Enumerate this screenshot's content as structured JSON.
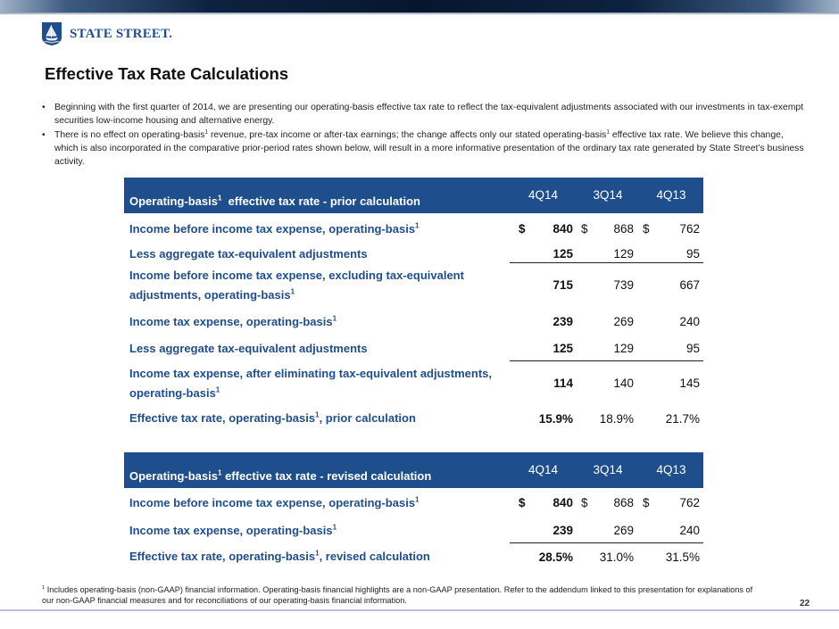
{
  "brand": {
    "name": "STATE STREET.",
    "icon": "ship-logo-icon",
    "color": "#1f4e8c"
  },
  "page": {
    "title": "Effective Tax Rate Calculations",
    "number": "22"
  },
  "bullets": [
    {
      "text": "Beginning with the first quarter of 2014, we are presenting our operating-basis effective tax rate to reflect the tax-equivalent adjustments associated with our investments in tax-exempt securities low-income housing and alternative energy."
    },
    {
      "pre1": "There is no effect on operating-basis",
      "sup1": "1",
      "mid": " revenue, pre-tax income or after-tax earnings; the change affects only our stated operating-basis",
      "sup2": "1",
      "post": " effective tax rate. We believe this change, which is also incorporated in the comparative prior-period rates shown below, will result in a more informative presentation of the ordinary tax rate generated by State Street’s business activity."
    }
  ],
  "table_prior": {
    "header": {
      "label_pre": "Operating-basis",
      "sup": "1",
      "label_post": "  effective tax rate - prior calculation",
      "q1": "4Q14",
      "q2": "3Q14",
      "q3": "4Q13"
    },
    "rows": [
      {
        "label": "Income before income tax expense, operating-basis",
        "sup": "1",
        "post": "",
        "cur1": "$",
        "v1": "840",
        "cur2": "$",
        "v2": "868",
        "cur3": "$",
        "v3": "762"
      },
      {
        "label": "Less aggregate tax-equivalent adjustments",
        "sup": "",
        "post": "",
        "v1": "125",
        "v2": "129",
        "v3": "95"
      },
      {
        "label": "Income before income tax expense, excluding tax-equivalent adjustments, operating-basis",
        "sup": "1",
        "post": "",
        "v1": "715",
        "v2": "739",
        "v3": "667"
      },
      {
        "label": "Income tax expense, operating-basis",
        "sup": "1",
        "post": "",
        "v1": "239",
        "v2": "269",
        "v3": "240"
      },
      {
        "label": "Less aggregate tax-equivalent adjustments",
        "sup": "",
        "post": "",
        "v1": "125",
        "v2": "129",
        "v3": "95"
      },
      {
        "label": "Income tax expense, after eliminating tax-equivalent adjustments, operating-basis",
        "sup": "1",
        "post": "",
        "v1": "114",
        "v2": "140",
        "v3": "145"
      },
      {
        "label": "Effective tax rate, operating-basis",
        "sup": "1",
        "post": ", prior calculation",
        "v1": "15.9%",
        "v2": "18.9%",
        "v3": "21.7%"
      }
    ]
  },
  "table_revised": {
    "header": {
      "label_pre": "Operating-basis",
      "sup": "1",
      "label_post": " effective tax rate - revised calculation",
      "q1": "4Q14",
      "q2": "3Q14",
      "q3": "4Q13"
    },
    "rows": [
      {
        "label": "Income before income tax expense, operating-basis",
        "sup": "1",
        "post": "",
        "cur1": "$",
        "v1": "840",
        "cur2": "$",
        "v2": "868",
        "cur3": "$",
        "v3": "762"
      },
      {
        "label": "Income tax expense, operating-basis",
        "sup": "1",
        "post": "",
        "v1": "239",
        "v2": "269",
        "v3": "240"
      },
      {
        "label": "Effective tax rate, operating-basis",
        "sup": "1",
        "post": ", revised calculation",
        "v1": "28.5%",
        "v2": "31.0%",
        "v3": "31.5%"
      }
    ]
  },
  "footnote": {
    "sup": "1",
    "text": " Includes operating-basis (non-GAAP) financial information.  Operating-basis financial highlights are a non-GAAP presentation.  Refer to the addendum linked to this presentation for explanations of our non-GAAP financial measures and for reconciliations of our operating-basis financial information."
  }
}
